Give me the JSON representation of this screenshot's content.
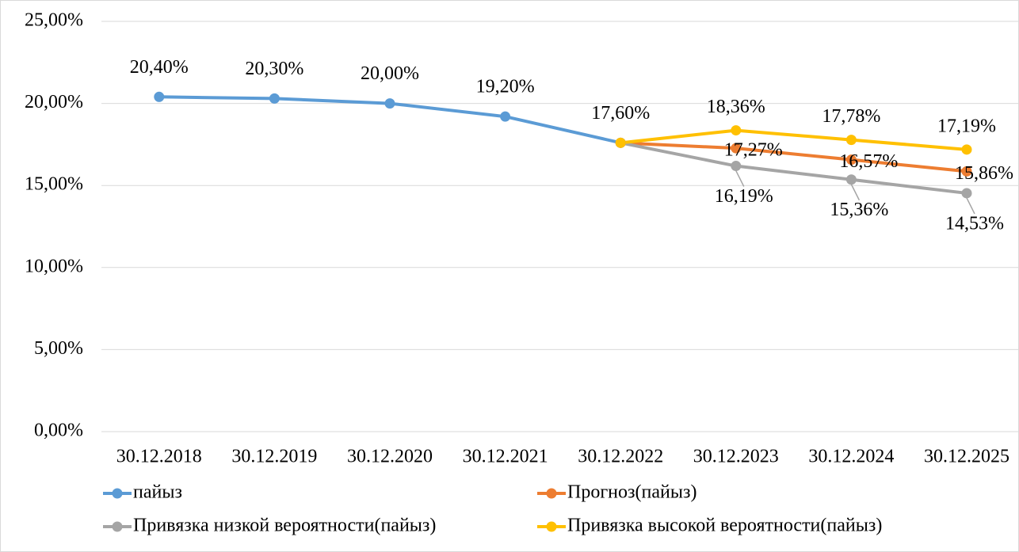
{
  "chart_data": {
    "type": "line",
    "categories": [
      "30.12.2018",
      "30.12.2019",
      "30.12.2020",
      "30.12.2021",
      "30.12.2022",
      "30.12.2023",
      "30.12.2024",
      "30.12.2025"
    ],
    "series": [
      {
        "name": "пайыз",
        "color": "#5b9bd5",
        "values": [
          20.4,
          20.3,
          20.0,
          19.2,
          17.6,
          null,
          null,
          null
        ],
        "value_labels": [
          "20,40%",
          "20,30%",
          "20,00%",
          "19,20%",
          "17,60%",
          null,
          null,
          null
        ]
      },
      {
        "name": "Прогноз(пайыз)",
        "color": "#ed7d31",
        "values": [
          null,
          null,
          null,
          null,
          17.6,
          17.27,
          16.57,
          15.86
        ],
        "value_labels": [
          null,
          null,
          null,
          null,
          null,
          "17,27%",
          "16,57%",
          "15,86%"
        ]
      },
      {
        "name": "Привязка низкой вероятности(пайыз)",
        "color": "#a5a5a5",
        "values": [
          null,
          null,
          null,
          null,
          17.6,
          16.19,
          15.36,
          14.53
        ],
        "value_labels": [
          null,
          null,
          null,
          null,
          null,
          "16,19%",
          "15,36%",
          "14,53%"
        ]
      },
      {
        "name": "Привязка высокой вероятности(пайыз)",
        "color": "#ffc000",
        "values": [
          null,
          null,
          null,
          null,
          17.6,
          18.36,
          17.78,
          17.19
        ],
        "value_labels": [
          null,
          null,
          null,
          null,
          null,
          "18,36%",
          "17,78%",
          "17,19%"
        ]
      }
    ],
    "ylim": [
      0,
      25
    ],
    "yticks": [
      {
        "value": 0,
        "label": "0,00%"
      },
      {
        "value": 5,
        "label": "5,00%"
      },
      {
        "value": 10,
        "label": "10,00%"
      },
      {
        "value": 15,
        "label": "15,00%"
      },
      {
        "value": 20,
        "label": "20,00%"
      },
      {
        "value": 25,
        "label": "25,00%"
      }
    ],
    "grid": true,
    "legend": "bottom"
  }
}
